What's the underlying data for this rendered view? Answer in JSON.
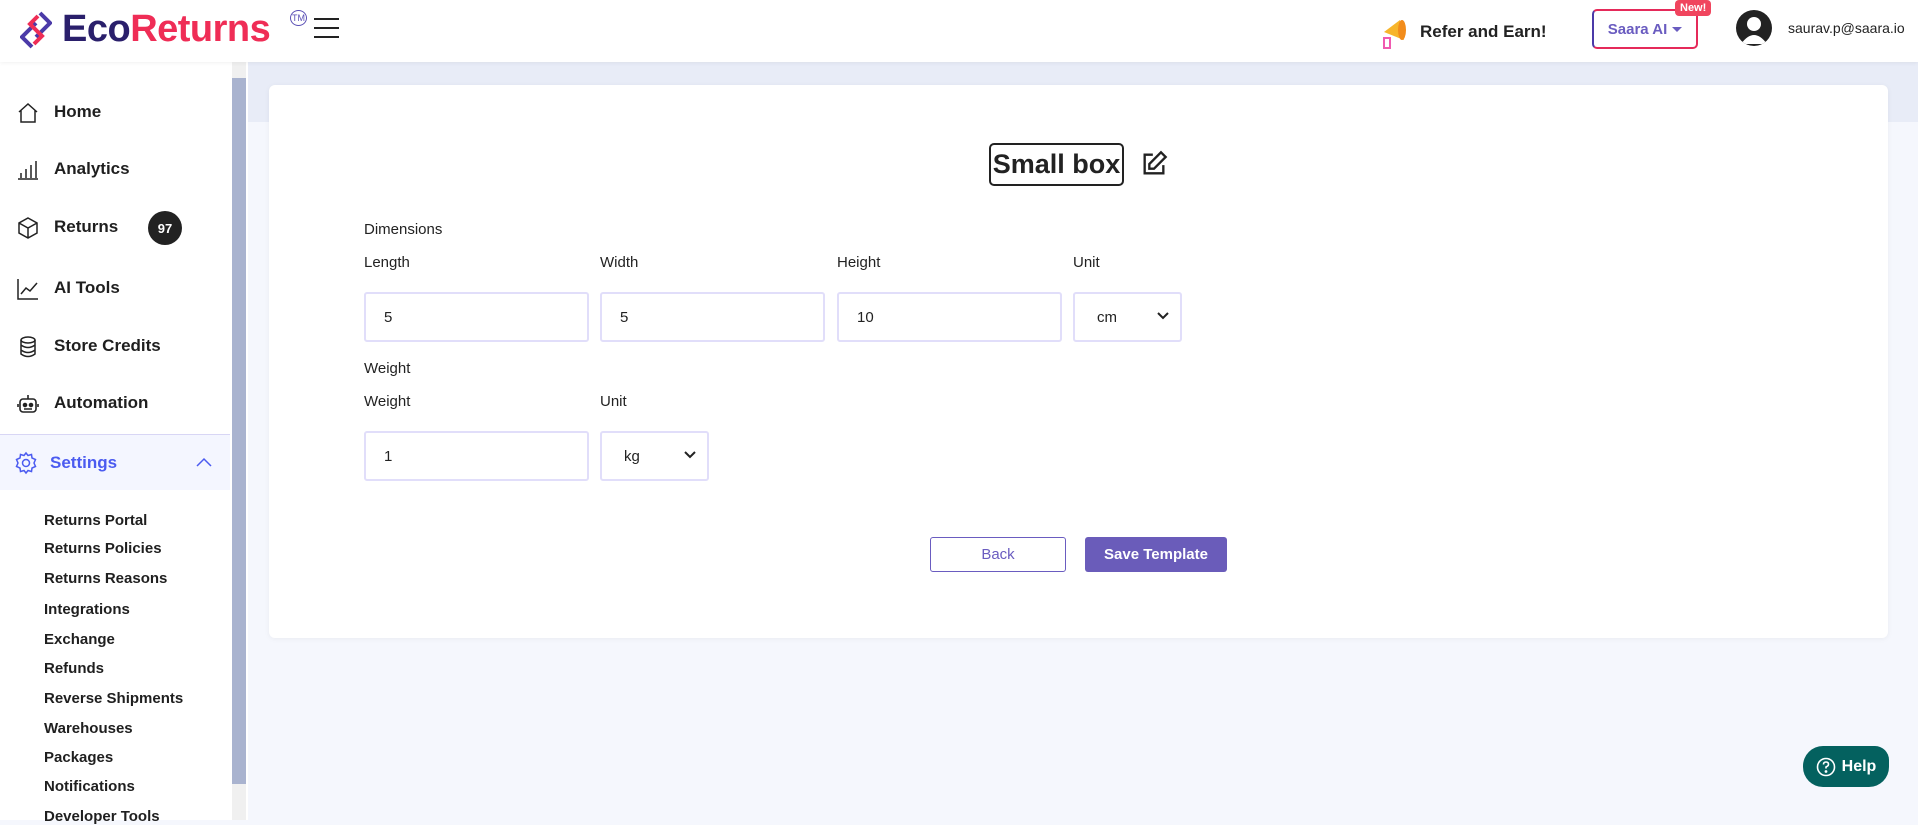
{
  "header": {
    "logo": {
      "part1": "Eco",
      "part2": "Returns",
      "tm": "TM"
    },
    "refer_label": "Refer and Earn!",
    "saara_label": "Saara AI",
    "new_badge": "New!",
    "user_email": "saurav.p@saara.io"
  },
  "sidebar": {
    "items": [
      {
        "label": "Home",
        "icon": "home-icon"
      },
      {
        "label": "Analytics",
        "icon": "bar-chart-icon"
      },
      {
        "label": "Returns",
        "icon": "box-icon",
        "badge": "97"
      },
      {
        "label": "AI Tools",
        "icon": "trend-icon"
      },
      {
        "label": "Store Credits",
        "icon": "database-icon"
      },
      {
        "label": "Automation",
        "icon": "robot-icon"
      }
    ],
    "settings": {
      "label": "Settings",
      "icon": "gear-icon",
      "expanded": true
    },
    "sub_items": [
      "Returns Portal",
      "Returns Policies",
      "Returns Reasons",
      "Integrations",
      "Exchange",
      "Refunds",
      "Reverse Shipments",
      "Warehouses",
      "Packages",
      "Notifications",
      "Developer Tools"
    ]
  },
  "form": {
    "title": "Small box",
    "dimensions_heading": "Dimensions",
    "length_label": "Length",
    "length_value": "5",
    "width_label": "Width",
    "width_value": "5",
    "height_label": "Height",
    "height_value": "10",
    "dim_unit_label": "Unit",
    "dim_unit_value": "cm",
    "weight_heading": "Weight",
    "weight_label": "Weight",
    "weight_value": "1",
    "weight_unit_label": "Unit",
    "weight_unit_value": "kg",
    "back_label": "Back",
    "save_label": "Save Template"
  },
  "help_label": "Help",
  "colors": {
    "accent": "#6a5cba",
    "brand_red": "#ef2d56",
    "brand_navy": "#2a1f6b",
    "help": "#04615f",
    "settings_active": "#4b5bf0"
  }
}
